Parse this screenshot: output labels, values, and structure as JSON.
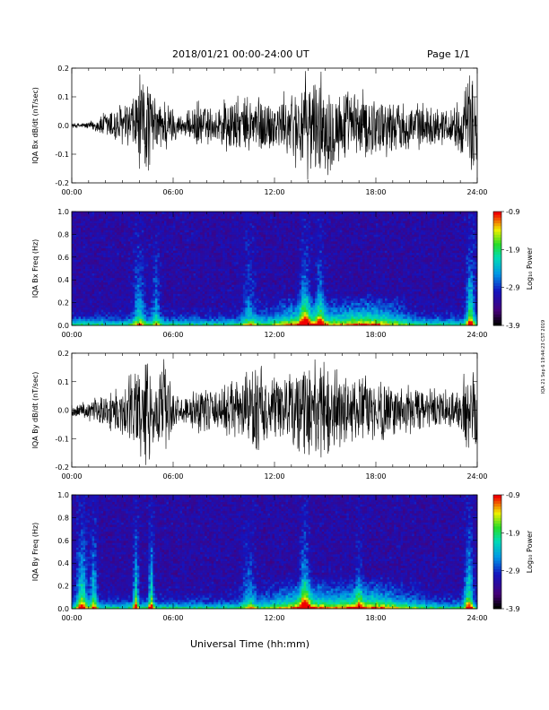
{
  "header": {
    "title": "2018/01/21   00:00-24:00 UT",
    "page": "Page 1/1"
  },
  "x_axis": {
    "ticks": [
      "00:00",
      "06:00",
      "12:00",
      "18:00",
      "24:00"
    ],
    "label": "Universal Time (hh:mm)"
  },
  "side_note": "IQA 21 Sep 6 19:44:23 CST 2019",
  "colorbar": {
    "ticks": [
      "-0.9",
      "-1.9",
      "-2.9",
      "-3.9"
    ],
    "label": "Log₁₀ Power"
  },
  "chart_data": [
    {
      "type": "line",
      "id": "bx-wave",
      "ylabel": "IQA Bx dB/dt (nT/sec)",
      "ylim": [
        -0.2,
        0.2
      ],
      "yticks": [
        "0.2",
        "0.1",
        "0.0",
        "-0.1",
        "-0.2"
      ],
      "xlim": [
        0,
        24
      ],
      "envelope": {
        "x_hours": [
          0,
          0.5,
          1,
          1.5,
          2,
          2.5,
          3,
          3.5,
          4,
          4.5,
          5,
          5.5,
          6,
          6.5,
          7,
          7.5,
          8,
          8.5,
          9,
          9.5,
          10,
          10.5,
          11,
          11.5,
          12,
          12.5,
          13,
          13.5,
          14,
          14.5,
          15,
          15.5,
          16,
          16.5,
          17,
          17.5,
          18,
          18.5,
          19,
          19.5,
          20,
          20.5,
          21,
          21.5,
          22,
          22.5,
          23,
          23.5,
          24
        ],
        "amplitude": [
          0.01,
          0.01,
          0.015,
          0.03,
          0.06,
          0.08,
          0.09,
          0.1,
          0.2,
          0.2,
          0.09,
          0.12,
          0.07,
          0.04,
          0.06,
          0.1,
          0.08,
          0.06,
          0.12,
          0.12,
          0.1,
          0.12,
          0.13,
          0.11,
          0.1,
          0.12,
          0.14,
          0.18,
          0.2,
          0.2,
          0.2,
          0.17,
          0.15,
          0.13,
          0.14,
          0.13,
          0.12,
          0.12,
          0.1,
          0.1,
          0.09,
          0.09,
          0.08,
          0.08,
          0.07,
          0.08,
          0.1,
          0.2,
          0.2
        ]
      }
    },
    {
      "type": "heatmap",
      "id": "bx-spec",
      "ylabel": "IQA Bx Freq (Hz)",
      "ylim": [
        0,
        1.0
      ],
      "yticks": [
        "1.0",
        "0.8",
        "0.6",
        "0.4",
        "0.2",
        "0.0"
      ],
      "xlim": [
        0,
        24
      ],
      "zlim": [
        -3.9,
        -0.9
      ]
    },
    {
      "type": "line",
      "id": "by-wave",
      "ylabel": "IQA By dB/dt (nT/sec)",
      "ylim": [
        -0.2,
        0.2
      ],
      "yticks": [
        "0.2",
        "0.1",
        "0.0",
        "-0.1",
        "-0.2"
      ],
      "xlim": [
        0,
        24
      ],
      "envelope": {
        "x_hours": [
          0,
          0.5,
          1,
          1.5,
          2,
          2.5,
          3,
          3.5,
          4,
          4.5,
          5,
          5.5,
          6,
          6.5,
          7,
          7.5,
          8,
          8.5,
          9,
          9.5,
          10,
          10.5,
          11,
          11.5,
          12,
          12.5,
          13,
          13.5,
          14,
          14.5,
          15,
          15.5,
          16,
          16.5,
          17,
          17.5,
          18,
          18.5,
          19,
          19.5,
          20,
          20.5,
          21,
          21.5,
          22,
          22.5,
          23,
          23.5,
          24
        ],
        "amplitude": [
          0.02,
          0.03,
          0.04,
          0.05,
          0.07,
          0.09,
          0.1,
          0.14,
          0.2,
          0.2,
          0.12,
          0.2,
          0.08,
          0.05,
          0.07,
          0.1,
          0.09,
          0.07,
          0.1,
          0.12,
          0.13,
          0.15,
          0.2,
          0.13,
          0.12,
          0.14,
          0.15,
          0.18,
          0.2,
          0.2,
          0.2,
          0.17,
          0.15,
          0.14,
          0.13,
          0.13,
          0.12,
          0.12,
          0.11,
          0.1,
          0.1,
          0.09,
          0.09,
          0.08,
          0.08,
          0.08,
          0.1,
          0.2,
          0.2
        ]
      }
    },
    {
      "type": "heatmap",
      "id": "by-spec",
      "ylabel": "IQA By Freq (Hz)",
      "ylim": [
        0,
        1.0
      ],
      "yticks": [
        "1.0",
        "0.8",
        "0.6",
        "0.4",
        "0.2",
        "0.0"
      ],
      "xlim": [
        0,
        24
      ],
      "zlim": [
        -3.9,
        -0.9
      ]
    }
  ]
}
